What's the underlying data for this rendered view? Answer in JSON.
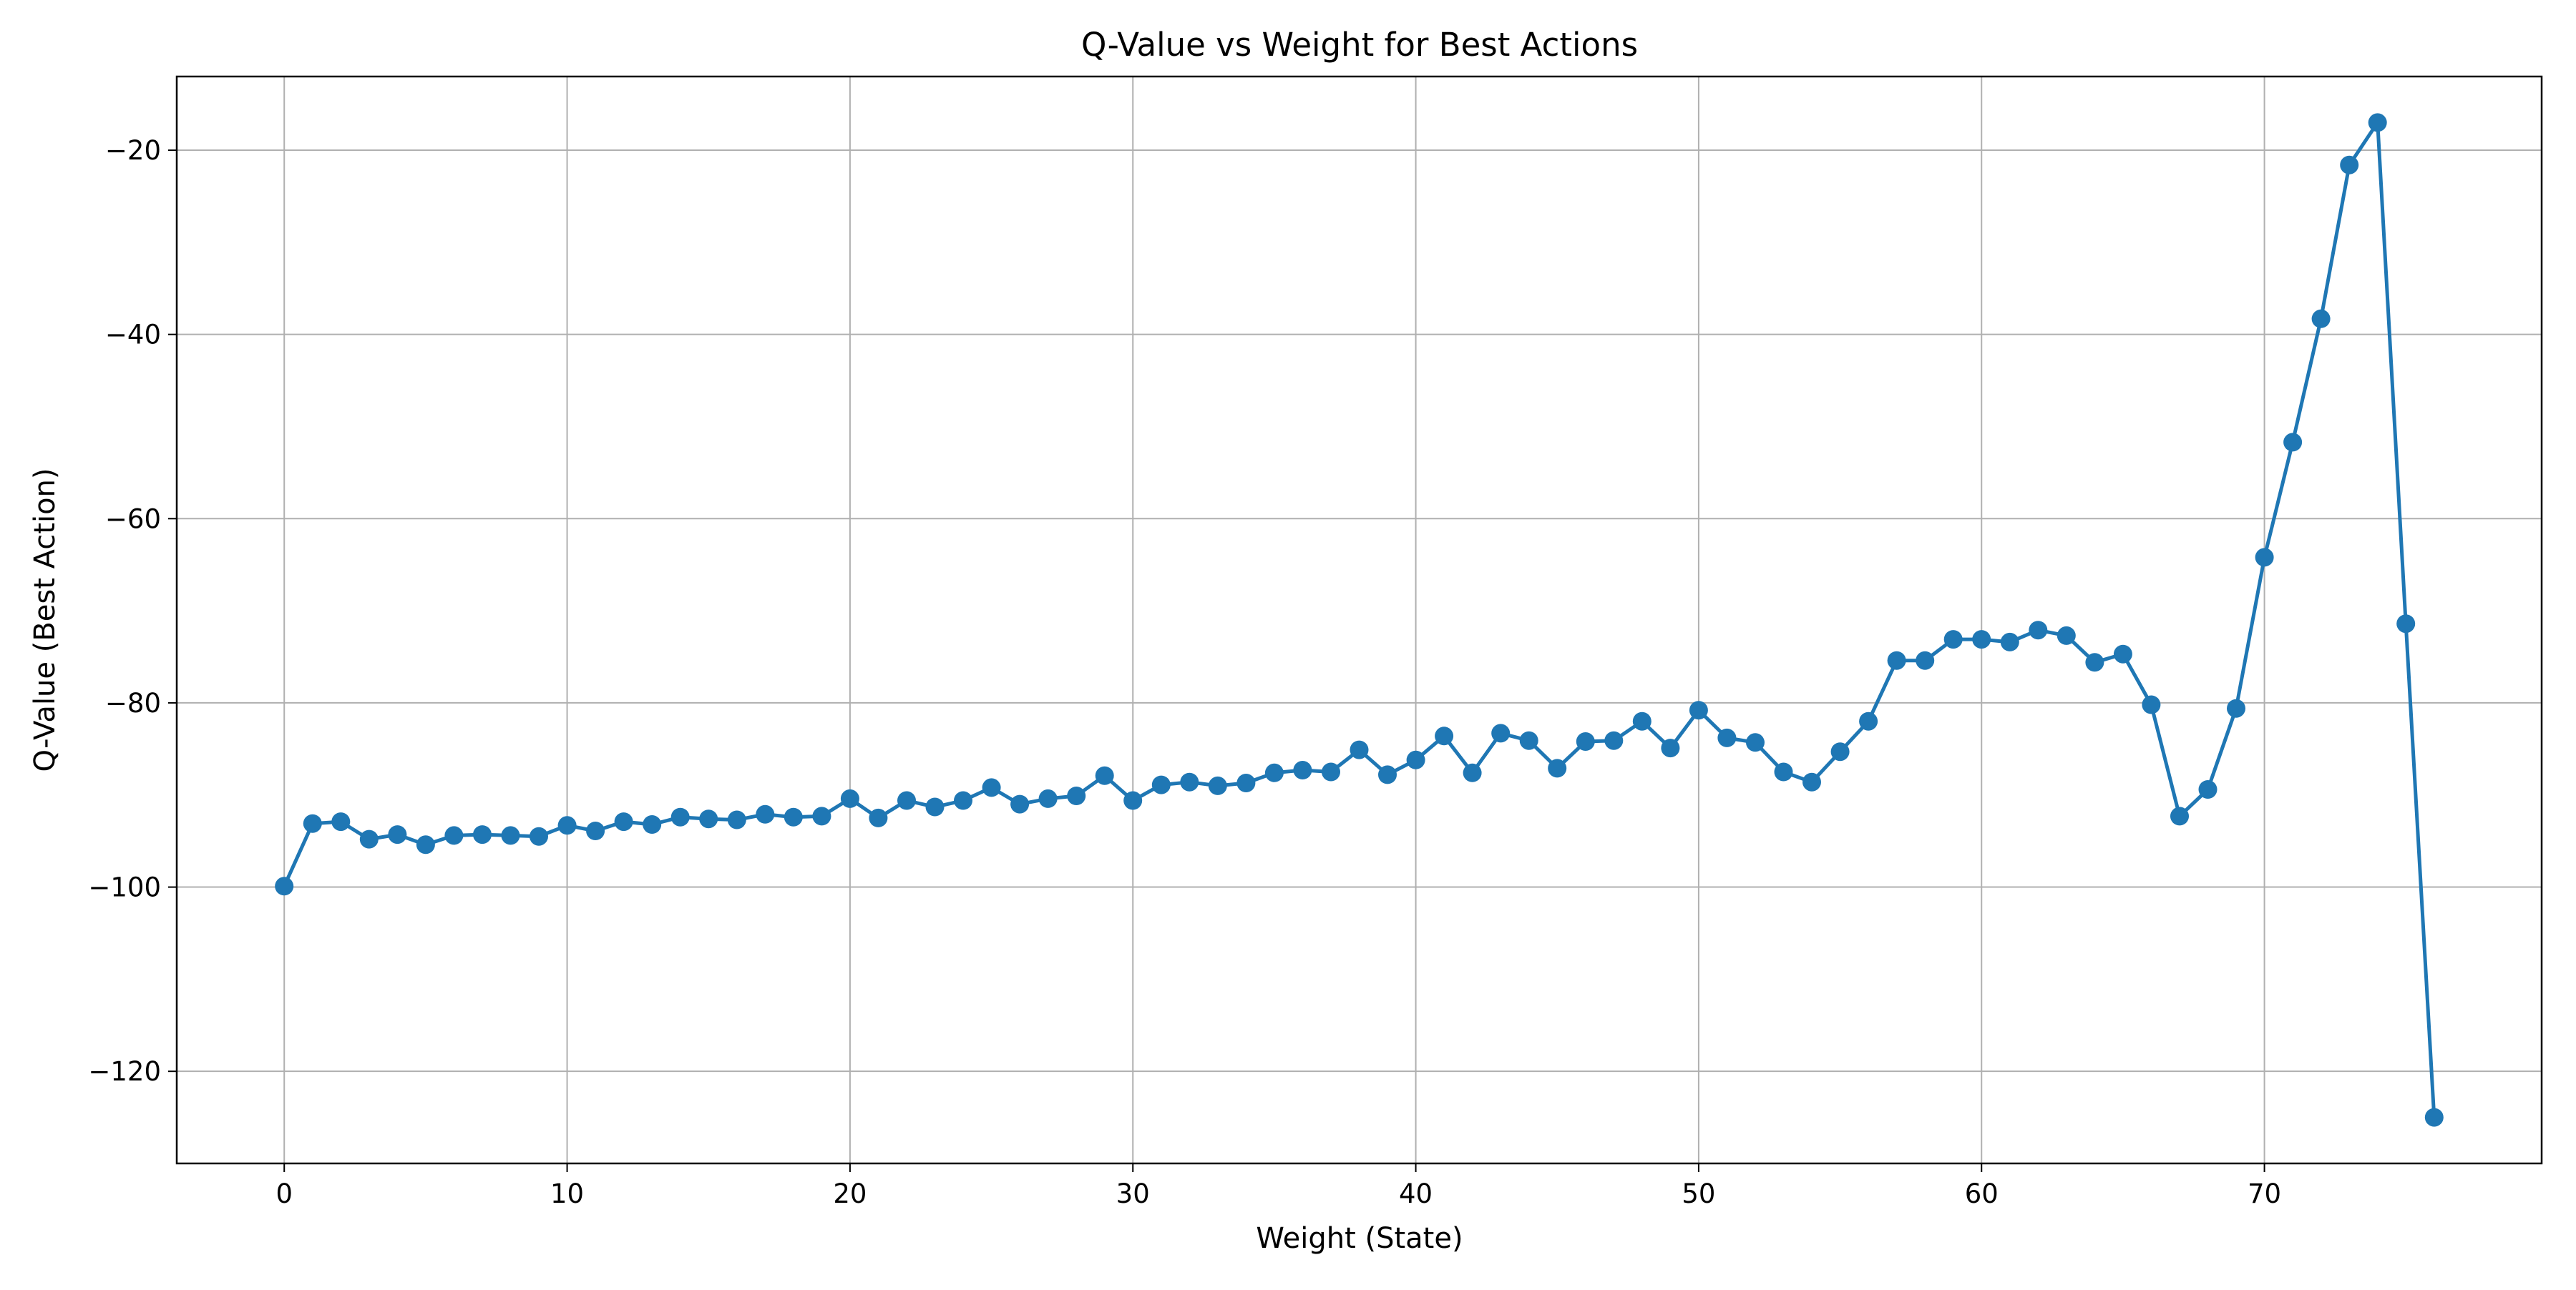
{
  "chart_data": {
    "type": "line",
    "title": "Q-Value vs Weight for Best Actions",
    "xlabel": "Weight (State)",
    "ylabel": "Q-Value (Best Action)",
    "xlim": [
      -3.8,
      79.8
    ],
    "ylim": [
      -130,
      -12
    ],
    "xticks": [
      0,
      10,
      20,
      30,
      40,
      50,
      60,
      70
    ],
    "yticks": [
      -120,
      -100,
      -80,
      -60,
      -40,
      -20
    ],
    "xtick_labels": [
      "0",
      "10",
      "20",
      "30",
      "40",
      "50",
      "60",
      "70"
    ],
    "ytick_labels": [
      "−120",
      "−100",
      "−80",
      "−60",
      "−40",
      "−20"
    ],
    "grid": true,
    "marker": "circle",
    "color": "#1f77b4",
    "x": [
      0,
      1,
      2,
      3,
      4,
      5,
      6,
      7,
      8,
      9,
      10,
      11,
      12,
      13,
      14,
      15,
      16,
      17,
      18,
      19,
      20,
      21,
      22,
      23,
      24,
      25,
      26,
      27,
      28,
      29,
      30,
      31,
      32,
      33,
      34,
      35,
      36,
      37,
      38,
      39,
      40,
      41,
      42,
      43,
      44,
      45,
      46,
      47,
      48,
      49,
      50,
      51,
      52,
      53,
      54,
      55,
      56,
      57,
      58,
      59,
      60,
      61,
      62,
      63,
      64,
      65,
      66,
      67,
      68,
      69,
      70,
      71,
      72,
      73,
      74,
      75,
      76
    ],
    "y": [
      -99.9,
      -93.1,
      -92.9,
      -94.8,
      -94.3,
      -95.4,
      -94.4,
      -94.3,
      -94.4,
      -94.5,
      -93.3,
      -93.9,
      -92.9,
      -93.2,
      -92.4,
      -92.6,
      -92.7,
      -92.1,
      -92.4,
      -92.3,
      -90.4,
      -92.5,
      -90.6,
      -91.3,
      -90.6,
      -89.2,
      -91.0,
      -90.4,
      -90.1,
      -87.9,
      -90.6,
      -88.9,
      -88.6,
      -89.0,
      -88.7,
      -87.6,
      -87.3,
      -87.5,
      -85.1,
      -87.8,
      -86.2,
      -83.6,
      -87.6,
      -83.3,
      -84.1,
      -87.1,
      -84.2,
      -84.1,
      -82.0,
      -84.9,
      -80.8,
      -83.8,
      -84.3,
      -87.5,
      -88.6,
      -85.3,
      -82.0,
      -75.4,
      -75.4,
      -73.1,
      -73.1,
      -73.4,
      -72.1,
      -72.7,
      -75.6,
      -74.7,
      -80.2,
      -92.3,
      -89.4,
      -80.6,
      -64.2,
      -51.7,
      -38.3,
      -21.6,
      -17.0,
      -71.4,
      -125.0
    ]
  }
}
